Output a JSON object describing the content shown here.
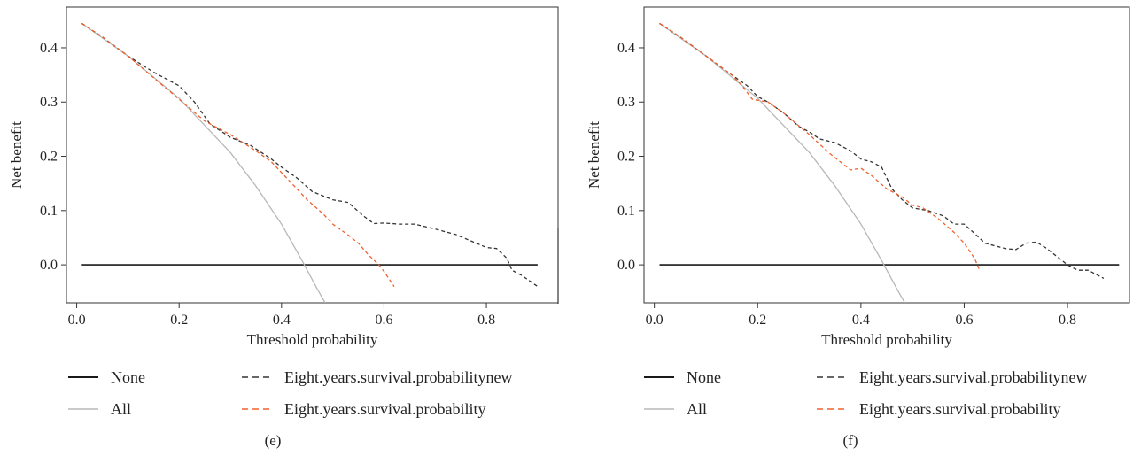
{
  "chart_data": [
    {
      "type": "line",
      "panel_label": "(e)",
      "xlabel": "Threshold probability",
      "ylabel": "Net benefit",
      "xlim": [
        -0.02,
        0.94
      ],
      "ylim": [
        -0.07,
        0.475
      ],
      "xticks": [
        0.0,
        0.2,
        0.4,
        0.6,
        0.8
      ],
      "xtick_labels": [
        "0.0",
        "0.2",
        "0.4",
        "0.6",
        "0.8"
      ],
      "yticks": [
        0.0,
        0.1,
        0.2,
        0.3,
        0.4
      ],
      "ytick_labels": [
        "0.0",
        "0.1",
        "0.2",
        "0.3",
        "0.4"
      ],
      "grid": false,
      "legend_position": "bottom",
      "series": [
        {
          "name": "None",
          "color": "#1a1a1a",
          "dash": "solid",
          "x": [
            0.01,
            0.9
          ],
          "y": [
            0.0,
            0.0
          ]
        },
        {
          "name": "All",
          "color": "#b8b8b8",
          "dash": "solid",
          "x": [
            0.01,
            0.1,
            0.2,
            0.3,
            0.35,
            0.4,
            0.44,
            0.47,
            0.485
          ],
          "y": [
            0.445,
            0.385,
            0.307,
            0.207,
            0.145,
            0.075,
            0.008,
            -0.045,
            -0.07
          ]
        },
        {
          "name": "Eight.years.survival.probabilitynew",
          "color": "#333333",
          "dash": "dashed",
          "x": [
            0.01,
            0.05,
            0.1,
            0.15,
            0.2,
            0.23,
            0.26,
            0.3,
            0.34,
            0.38,
            0.4,
            0.43,
            0.46,
            0.5,
            0.53,
            0.56,
            0.58,
            0.6,
            0.63,
            0.66,
            0.7,
            0.74,
            0.78,
            0.8,
            0.82,
            0.84,
            0.85,
            0.87,
            0.9
          ],
          "y": [
            0.445,
            0.42,
            0.385,
            0.355,
            0.33,
            0.3,
            0.26,
            0.235,
            0.22,
            0.195,
            0.18,
            0.16,
            0.135,
            0.12,
            0.115,
            0.09,
            0.076,
            0.077,
            0.075,
            0.075,
            0.066,
            0.056,
            0.04,
            0.032,
            0.03,
            0.012,
            -0.01,
            -0.02,
            -0.04
          ]
        },
        {
          "name": "Eight.years.survival.probability",
          "color": "#f0602d",
          "dash": "dashed",
          "x": [
            0.01,
            0.05,
            0.1,
            0.15,
            0.2,
            0.25,
            0.3,
            0.35,
            0.38,
            0.4,
            0.42,
            0.45,
            0.48,
            0.5,
            0.53,
            0.55,
            0.57,
            0.59,
            0.6,
            0.62
          ],
          "y": [
            0.445,
            0.42,
            0.385,
            0.345,
            0.305,
            0.265,
            0.24,
            0.21,
            0.19,
            0.17,
            0.15,
            0.12,
            0.095,
            0.075,
            0.055,
            0.04,
            0.018,
            0.0,
            -0.012,
            -0.04
          ]
        }
      ]
    },
    {
      "type": "line",
      "panel_label": "(f)",
      "xlabel": "Threshold probability",
      "ylabel": "Net benefit",
      "xlim": [
        -0.02,
        0.92
      ],
      "ylim": [
        -0.07,
        0.475
      ],
      "xticks": [
        0.0,
        0.2,
        0.4,
        0.6,
        0.8
      ],
      "xtick_labels": [
        "0.0",
        "0.2",
        "0.4",
        "0.6",
        "0.8"
      ],
      "yticks": [
        0.0,
        0.1,
        0.2,
        0.3,
        0.4
      ],
      "ytick_labels": [
        "0.0",
        "0.1",
        "0.2",
        "0.3",
        "0.4"
      ],
      "grid": false,
      "legend_position": "bottom",
      "series": [
        {
          "name": "None",
          "color": "#1a1a1a",
          "dash": "solid",
          "x": [
            0.01,
            0.9
          ],
          "y": [
            0.0,
            0.0
          ]
        },
        {
          "name": "All",
          "color": "#b8b8b8",
          "dash": "solid",
          "x": [
            0.01,
            0.1,
            0.2,
            0.3,
            0.35,
            0.4,
            0.44,
            0.47,
            0.485
          ],
          "y": [
            0.445,
            0.385,
            0.307,
            0.207,
            0.145,
            0.075,
            0.008,
            -0.045,
            -0.07
          ]
        },
        {
          "name": "Eight.years.survival.probabilitynew",
          "color": "#333333",
          "dash": "dashed",
          "x": [
            0.01,
            0.05,
            0.1,
            0.15,
            0.18,
            0.2,
            0.22,
            0.25,
            0.28,
            0.3,
            0.32,
            0.35,
            0.38,
            0.4,
            0.42,
            0.44,
            0.46,
            0.48,
            0.5,
            0.53,
            0.56,
            0.58,
            0.6,
            0.62,
            0.64,
            0.66,
            0.68,
            0.7,
            0.72,
            0.74,
            0.76,
            0.78,
            0.8,
            0.82,
            0.84,
            0.87
          ],
          "y": [
            0.445,
            0.42,
            0.385,
            0.35,
            0.33,
            0.31,
            0.3,
            0.28,
            0.255,
            0.245,
            0.232,
            0.225,
            0.21,
            0.195,
            0.19,
            0.18,
            0.14,
            0.12,
            0.105,
            0.1,
            0.09,
            0.075,
            0.075,
            0.058,
            0.04,
            0.035,
            0.03,
            0.028,
            0.04,
            0.042,
            0.03,
            0.015,
            0.0,
            -0.01,
            -0.01,
            -0.025
          ]
        },
        {
          "name": "Eight.years.survival.probability",
          "color": "#f0602d",
          "dash": "dashed",
          "x": [
            0.01,
            0.05,
            0.1,
            0.15,
            0.17,
            0.19,
            0.22,
            0.25,
            0.3,
            0.34,
            0.36,
            0.38,
            0.4,
            0.42,
            0.45,
            0.48,
            0.5,
            0.52,
            0.55,
            0.58,
            0.6,
            0.62,
            0.63
          ],
          "y": [
            0.445,
            0.42,
            0.385,
            0.35,
            0.33,
            0.305,
            0.3,
            0.28,
            0.24,
            0.205,
            0.19,
            0.175,
            0.178,
            0.165,
            0.14,
            0.125,
            0.11,
            0.105,
            0.085,
            0.06,
            0.04,
            0.012,
            -0.01
          ]
        }
      ]
    }
  ]
}
